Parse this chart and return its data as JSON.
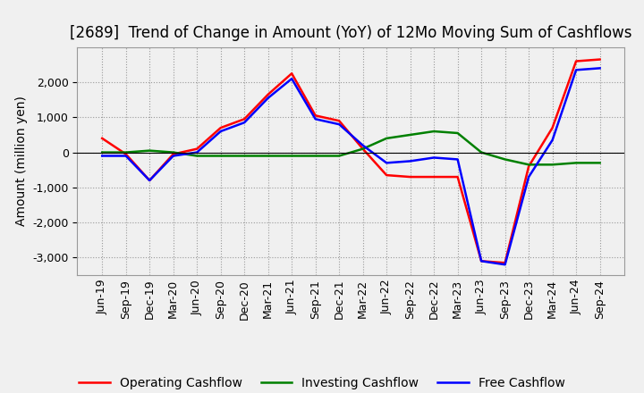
{
  "title": "[2689]  Trend of Change in Amount (YoY) of 12Mo Moving Sum of Cashflows",
  "ylabel": "Amount (million yen)",
  "x_labels": [
    "Jun-19",
    "Sep-19",
    "Dec-19",
    "Mar-20",
    "Jun-20",
    "Sep-20",
    "Dec-20",
    "Mar-21",
    "Jun-21",
    "Sep-21",
    "Dec-21",
    "Mar-22",
    "Jun-22",
    "Sep-22",
    "Dec-22",
    "Mar-23",
    "Jun-23",
    "Sep-23",
    "Dec-23",
    "Mar-24",
    "Jun-24",
    "Sep-24"
  ],
  "operating": [
    400,
    -50,
    -800,
    -50,
    100,
    700,
    950,
    1650,
    2250,
    1050,
    900,
    100,
    -650,
    -700,
    -700,
    -700,
    -3100,
    -3150,
    -400,
    700,
    2600,
    2650
  ],
  "investing": [
    0,
    0,
    50,
    0,
    -100,
    -100,
    -100,
    -100,
    -100,
    -100,
    -100,
    100,
    400,
    500,
    600,
    550,
    0,
    -200,
    -350,
    -350,
    -300,
    -300
  ],
  "free": [
    -100,
    -100,
    -800,
    -100,
    0,
    600,
    850,
    1550,
    2100,
    950,
    800,
    200,
    -300,
    -250,
    -150,
    -200,
    -3100,
    -3200,
    -700,
    350,
    2350,
    2400
  ],
  "operating_color": "#ff0000",
  "investing_color": "#008000",
  "free_color": "#0000ff",
  "background_color": "#f0f0f0",
  "plot_bg_color": "#f0f0f0",
  "grid_color": "#999999",
  "ylim": [
    -3500,
    3000
  ],
  "yticks": [
    -3000,
    -2000,
    -1000,
    0,
    1000,
    2000
  ],
  "title_fontsize": 12,
  "label_fontsize": 10,
  "tick_fontsize": 9,
  "legend_fontsize": 10
}
